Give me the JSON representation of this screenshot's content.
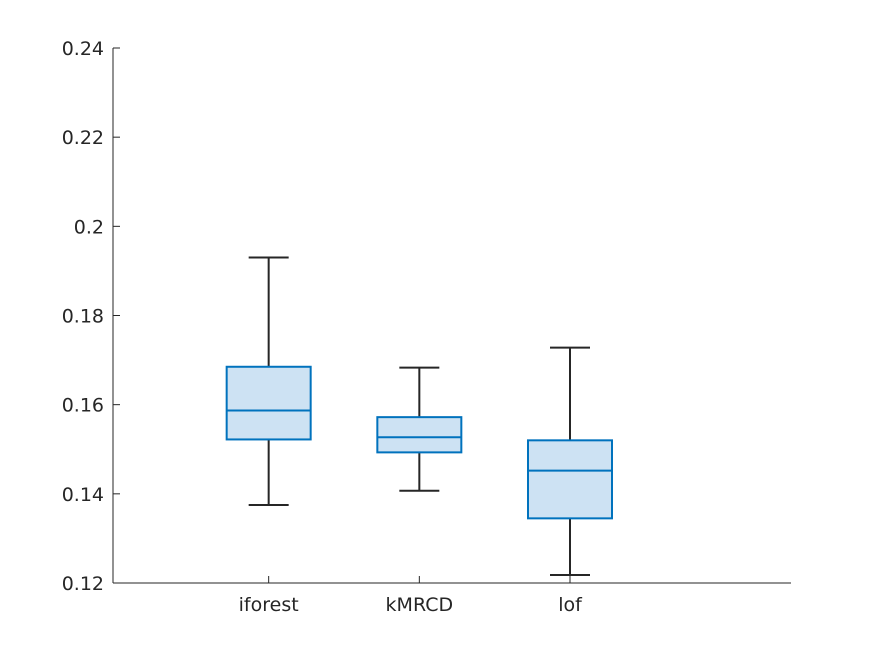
{
  "chart_data": {
    "type": "box",
    "title": "",
    "xlabel": "",
    "ylabel": "",
    "ylim": [
      0.12,
      0.24
    ],
    "yticks": [
      0.12,
      0.14,
      0.16,
      0.18,
      0.2,
      0.22,
      0.24
    ],
    "ytick_labels": [
      "0.12",
      "0.14",
      "0.16",
      "0.18",
      "0.2",
      "0.22",
      "0.24"
    ],
    "categories": [
      "iforest",
      "kMRCD",
      "lof"
    ],
    "boxes": [
      {
        "name": "iforest",
        "whisker_low": 0.1375,
        "q1": 0.1522,
        "median": 0.1587,
        "q3": 0.1685,
        "whisker_high": 0.193
      },
      {
        "name": "kMRCD",
        "whisker_low": 0.1407,
        "q1": 0.1493,
        "median": 0.1527,
        "q3": 0.1572,
        "whisker_high": 0.1683
      },
      {
        "name": "lof",
        "whisker_low": 0.1218,
        "q1": 0.1345,
        "median": 0.1452,
        "q3": 0.152,
        "whisker_high": 0.1728
      }
    ],
    "colors": {
      "box_edge": "#0072bd",
      "box_fill": "#cde2f3",
      "whisker": "#262626",
      "axis": "#262626"
    },
    "grid": false,
    "legend": "none"
  }
}
